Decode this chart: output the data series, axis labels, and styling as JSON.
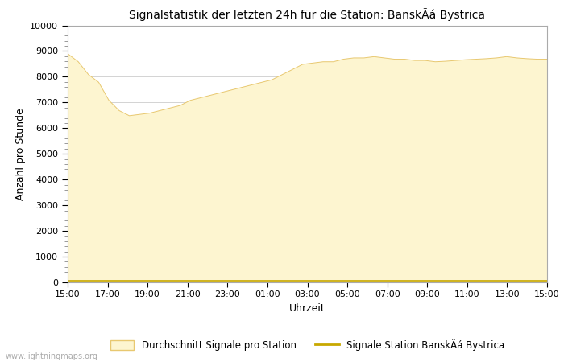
{
  "title": "Signalstatistik der letzten 24h für die Station: BanskÃá Bystrica",
  "xlabel": "Uhrzeit",
  "ylabel": "Anzahl pro Stunde",
  "ylim": [
    0,
    10000
  ],
  "yticks": [
    0,
    1000,
    2000,
    3000,
    4000,
    5000,
    6000,
    7000,
    8000,
    9000,
    10000
  ],
  "xtick_labels": [
    "15:00",
    "17:00",
    "19:00",
    "21:00",
    "23:00",
    "01:00",
    "03:00",
    "05:00",
    "07:00",
    "09:00",
    "11:00",
    "13:00",
    "15:00"
  ],
  "bg_color": "#ffffff",
  "plot_bg_color": "#ffffff",
  "fill_color": "#fdf5d0",
  "fill_edge_color": "#e8c870",
  "line_color": "#c8a800",
  "watermark": "www.lightningmaps.org",
  "legend_fill_label": "Durchschnitt Signale pro Station",
  "legend_line_label": "Signale Station BanskÃá Bystrica",
  "avg_values": [
    8900,
    8600,
    8100,
    7800,
    7100,
    6700,
    6500,
    6550,
    6600,
    6700,
    6800,
    6900,
    7100,
    7200,
    7300,
    7400,
    7500,
    7600,
    7700,
    7800,
    7900,
    8100,
    8300,
    8500,
    8550,
    8600,
    8600,
    8700,
    8750,
    8750,
    8800,
    8750,
    8700,
    8700,
    8650,
    8650,
    8600,
    8620,
    8650,
    8680,
    8700,
    8720,
    8750,
    8800,
    8750,
    8720,
    8700,
    8700
  ],
  "station_values": [
    50,
    50,
    50,
    50,
    50,
    50,
    50,
    50,
    50,
    50,
    50,
    50,
    50,
    50,
    50,
    50,
    50,
    50,
    50,
    50,
    50,
    50,
    50,
    50,
    50,
    50,
    50,
    50,
    50,
    50,
    50,
    50,
    50,
    50,
    50,
    50,
    50,
    50,
    50,
    50,
    50,
    50,
    50,
    50,
    50,
    50,
    50,
    50
  ]
}
